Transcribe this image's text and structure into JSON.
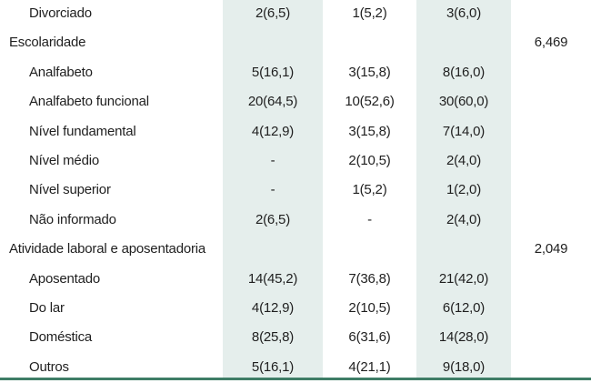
{
  "table": {
    "rows": [
      {
        "label": "Divorciado",
        "indent": true,
        "v1": "2(6,5)",
        "v2": "1(5,2)",
        "v3": "3(6,0)",
        "p": ""
      },
      {
        "label": "Escolaridade",
        "indent": false,
        "v1": "",
        "v2": "",
        "v3": "",
        "p": "6,469"
      },
      {
        "label": "Analfabeto",
        "indent": true,
        "v1": "5(16,1)",
        "v2": "3(15,8)",
        "v3": "8(16,0)",
        "p": ""
      },
      {
        "label": "Analfabeto funcional",
        "indent": true,
        "v1": "20(64,5)",
        "v2": "10(52,6)",
        "v3": "30(60,0)",
        "p": ""
      },
      {
        "label": "Nível fundamental",
        "indent": true,
        "v1": "4(12,9)",
        "v2": "3(15,8)",
        "v3": "7(14,0)",
        "p": ""
      },
      {
        "label": "Nível médio",
        "indent": true,
        "v1": "-",
        "v2": "2(10,5)",
        "v3": "2(4,0)",
        "p": ""
      },
      {
        "label": "Nível superior",
        "indent": true,
        "v1": "-",
        "v2": "1(5,2)",
        "v3": "1(2,0)",
        "p": ""
      },
      {
        "label": "Não informado",
        "indent": true,
        "v1": "2(6,5)",
        "v2": "-",
        "v3": "2(4,0)",
        "p": ""
      },
      {
        "label": "Atividade laboral e aposentadoria",
        "indent": false,
        "v1": "",
        "v2": "",
        "v3": "",
        "p": "2,049"
      },
      {
        "label": "Aposentado",
        "indent": true,
        "v1": "14(45,2)",
        "v2": "7(36,8)",
        "v3": "21(42,0)",
        "p": ""
      },
      {
        "label": "Do lar",
        "indent": true,
        "v1": "4(12,9)",
        "v2": "2(10,5)",
        "v3": "6(12,0)",
        "p": ""
      },
      {
        "label": "Doméstica",
        "indent": true,
        "v1": "8(25,8)",
        "v2": "6(31,6)",
        "v3": "14(28,0)",
        "p": ""
      },
      {
        "label": "Outros",
        "indent": true,
        "v1": "5(16,1)",
        "v2": "4(21,1)",
        "v3": "9(18,0)",
        "p": ""
      }
    ],
    "colors": {
      "shaded_column": "#e5eeec",
      "bottom_rule": "#3f7d66",
      "text": "#1f1f1f"
    }
  }
}
